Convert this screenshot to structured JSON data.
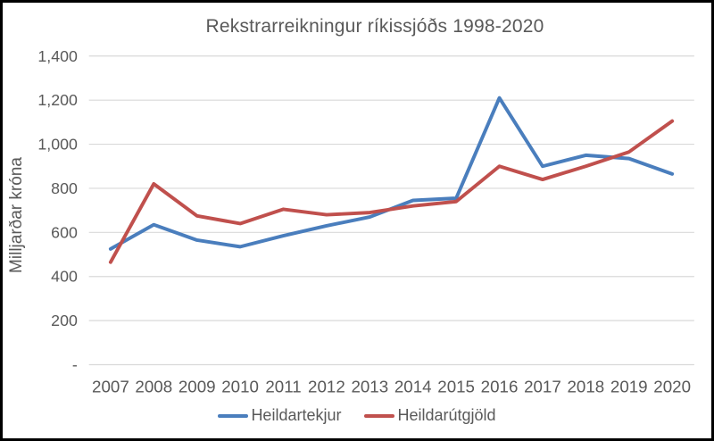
{
  "window": {
    "background": "#ffffff",
    "frame_border_color": "#000000"
  },
  "chart_data": {
    "type": "line",
    "title": "Rekstrarreikningur ríkissjóðs 1998-2020",
    "xlabel": "",
    "ylabel": "Milljarðar króna",
    "categories": [
      "2007",
      "2008",
      "2009",
      "2010",
      "2011",
      "2012",
      "2013",
      "2014",
      "2015",
      "2016",
      "2017",
      "2018",
      "2019",
      "2020"
    ],
    "series": [
      {
        "name": "Heildartekjur",
        "color": "#4A7EBD",
        "values": [
          525,
          635,
          565,
          535,
          585,
          630,
          670,
          745,
          755,
          1210,
          900,
          950,
          935,
          865
        ]
      },
      {
        "name": "Heildarútgjöld",
        "color": "#C0504D",
        "values": [
          465,
          820,
          675,
          640,
          705,
          680,
          690,
          720,
          740,
          900,
          840,
          900,
          965,
          1105
        ]
      }
    ],
    "ylim": [
      0,
      1400
    ],
    "ytick_step": 200,
    "ytick_labels": [
      "-",
      "200",
      "400",
      "600",
      "800",
      "1,000",
      "1,200",
      "1,400"
    ],
    "grid": true,
    "gridline_color": "#d9d9d9",
    "text_color": "#595959",
    "legend_position": "bottom"
  }
}
